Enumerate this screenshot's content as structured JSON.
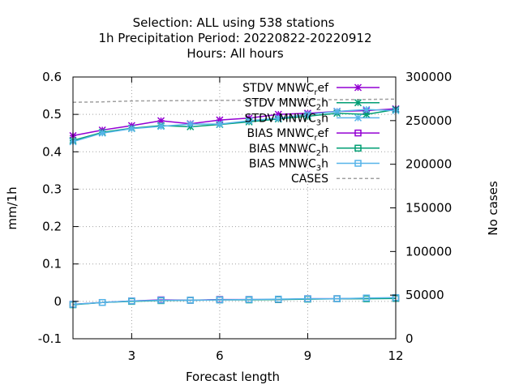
{
  "chart_data": {
    "type": "line",
    "title_lines": [
      "Selection: ALL using   538 stations",
      "1h Precipitation   Period: 20220822-20220912",
      "Hours:  All hours"
    ],
    "xlabel": "Forecast length",
    "ylabel": "mm/1h",
    "y2label": "No cases",
    "xlim": [
      1,
      12
    ],
    "ylim": [
      -0.1,
      0.6
    ],
    "y2lim": [
      0,
      300000
    ],
    "xticks": [
      3,
      6,
      9,
      12
    ],
    "yticks": [
      -0.1,
      0,
      0.1,
      0.2,
      0.3,
      0.4,
      0.5,
      0.6
    ],
    "y2ticks": [
      0,
      50000,
      100000,
      150000,
      200000,
      250000,
      300000
    ],
    "grid": true,
    "legend_position": "top-right",
    "x": [
      1,
      2,
      3,
      4,
      5,
      6,
      7,
      8,
      9,
      10,
      11,
      12
    ],
    "series": [
      {
        "name": "STDV MNWC_ref",
        "name_main": "STDV MNWC",
        "name_sub": "r",
        "name_tail": "ef",
        "color": "#9400d3",
        "marker": "star",
        "axis": "y",
        "values": [
          0.443,
          0.458,
          0.47,
          0.483,
          0.475,
          0.485,
          0.49,
          0.5,
          0.503,
          0.508,
          0.51,
          0.515
        ]
      },
      {
        "name": "STDV MNWC_2h",
        "name_main": "STDV MNWC",
        "name_sub": "2",
        "name_tail": "h",
        "color": "#009e73",
        "marker": "star",
        "axis": "y",
        "values": [
          0.43,
          0.452,
          0.463,
          0.47,
          0.467,
          0.473,
          0.48,
          0.488,
          0.495,
          0.503,
          0.5,
          0.513
        ]
      },
      {
        "name": "STDV MNWC_3h",
        "name_main": "STDV MNWC",
        "name_sub": "3",
        "name_tail": "h",
        "color": "#56b4e9",
        "marker": "star",
        "axis": "y",
        "values": [
          0.427,
          0.45,
          0.462,
          0.468,
          0.474,
          0.474,
          0.483,
          0.49,
          0.5,
          0.508,
          0.513,
          0.51
        ]
      },
      {
        "name": "BIAS MNWC_ref",
        "name_main": "BIAS MNWC",
        "name_sub": "r",
        "name_tail": "ef",
        "color": "#9400d3",
        "marker": "square",
        "axis": "y",
        "values": [
          -0.008,
          -0.003,
          0.001,
          0.004,
          0.003,
          0.005,
          0.005,
          0.005,
          0.007,
          0.007,
          0.008,
          0.008
        ]
      },
      {
        "name": "BIAS MNWC_2h",
        "name_main": "BIAS MNWC",
        "name_sub": "2",
        "name_tail": "h",
        "color": "#009e73",
        "marker": "square",
        "axis": "y",
        "values": [
          -0.009,
          -0.003,
          0.0,
          0.002,
          0.003,
          0.004,
          0.004,
          0.005,
          0.006,
          0.007,
          0.007,
          0.008
        ]
      },
      {
        "name": "BIAS MNWC_3h",
        "name_main": "BIAS MNWC",
        "name_sub": "3",
        "name_tail": "h",
        "color": "#56b4e9",
        "marker": "square",
        "axis": "y",
        "values": [
          -0.008,
          -0.003,
          0.001,
          0.003,
          0.003,
          0.004,
          0.005,
          0.006,
          0.007,
          0.007,
          0.009,
          0.01
        ]
      },
      {
        "name": "CASES",
        "name_main": "CASES",
        "name_sub": "",
        "name_tail": "",
        "color": "#a0a0a0",
        "marker": "none",
        "dashed": true,
        "axis": "y2",
        "values": [
          271000,
          271500,
          272500,
          272800,
          273000,
          273200,
          273300,
          273500,
          273800,
          274000,
          274300,
          274600
        ]
      }
    ]
  }
}
